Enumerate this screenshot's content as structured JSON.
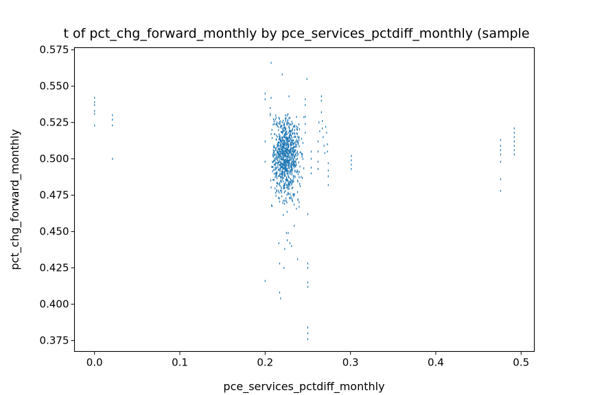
{
  "chart_data": {
    "type": "scatter",
    "title": "t of pct_chg_forward_monthly by pce_services_pctdiff_monthly (sample",
    "xlabel": "pce_services_pctdiff_monthly",
    "ylabel": "pct_chg_forward_monthly",
    "xlim": [
      -0.0235,
      0.5155
    ],
    "ylim": [
      0.3675,
      0.5765
    ],
    "xticks": [
      "0.0",
      "0.1",
      "0.2",
      "0.3",
      "0.4",
      "0.5"
    ],
    "yticks": [
      "0.375",
      "0.400",
      "0.425",
      "0.450",
      "0.475",
      "0.500",
      "0.525",
      "0.550",
      "0.575"
    ],
    "grid": false,
    "marker_color": "#1f77b4",
    "points": [
      [
        0.0,
        0.542
      ],
      [
        0.0,
        0.539
      ],
      [
        0.0,
        0.537
      ],
      [
        0.0,
        0.533
      ],
      [
        0.0,
        0.531
      ],
      [
        0.0,
        0.523
      ],
      [
        0.021,
        0.53
      ],
      [
        0.021,
        0.527
      ],
      [
        0.021,
        0.523
      ],
      [
        0.021,
        0.5
      ],
      [
        0.2,
        0.545
      ],
      [
        0.2,
        0.541
      ],
      [
        0.2,
        0.512
      ],
      [
        0.2,
        0.498
      ],
      [
        0.2,
        0.416
      ],
      [
        0.206,
        0.535
      ],
      [
        0.206,
        0.531
      ],
      [
        0.207,
        0.566
      ],
      [
        0.207,
        0.542
      ],
      [
        0.208,
        0.52
      ],
      [
        0.216,
        0.442
      ],
      [
        0.217,
        0.428
      ],
      [
        0.217,
        0.408
      ],
      [
        0.218,
        0.404
      ],
      [
        0.22,
        0.558
      ],
      [
        0.222,
        0.425
      ],
      [
        0.223,
        0.438
      ],
      [
        0.225,
        0.449
      ],
      [
        0.226,
        0.444
      ],
      [
        0.227,
        0.449
      ],
      [
        0.228,
        0.543
      ],
      [
        0.229,
        0.442
      ],
      [
        0.231,
        0.44
      ],
      [
        0.234,
        0.454
      ],
      [
        0.238,
        0.431
      ],
      [
        0.247,
        0.541
      ],
      [
        0.247,
        0.537
      ],
      [
        0.247,
        0.529
      ],
      [
        0.247,
        0.524
      ],
      [
        0.247,
        0.518
      ],
      [
        0.249,
        0.555
      ],
      [
        0.25,
        0.462
      ],
      [
        0.25,
        0.428
      ],
      [
        0.25,
        0.425
      ],
      [
        0.25,
        0.415
      ],
      [
        0.25,
        0.412
      ],
      [
        0.25,
        0.384
      ],
      [
        0.25,
        0.38
      ],
      [
        0.25,
        0.376
      ],
      [
        0.254,
        0.505
      ],
      [
        0.254,
        0.5
      ],
      [
        0.254,
        0.494
      ],
      [
        0.254,
        0.49
      ],
      [
        0.262,
        0.512
      ],
      [
        0.262,
        0.505
      ],
      [
        0.262,
        0.498
      ],
      [
        0.262,
        0.493
      ],
      [
        0.263,
        0.525
      ],
      [
        0.264,
        0.519
      ],
      [
        0.266,
        0.543
      ],
      [
        0.266,
        0.54
      ],
      [
        0.266,
        0.532
      ],
      [
        0.267,
        0.526
      ],
      [
        0.267,
        0.521
      ],
      [
        0.268,
        0.515
      ],
      [
        0.269,
        0.509
      ],
      [
        0.27,
        0.504
      ],
      [
        0.271,
        0.522
      ],
      [
        0.272,
        0.518
      ],
      [
        0.273,
        0.51
      ],
      [
        0.273,
        0.505
      ],
      [
        0.274,
        0.497
      ],
      [
        0.274,
        0.492
      ],
      [
        0.274,
        0.488
      ],
      [
        0.274,
        0.482
      ],
      [
        0.301,
        0.502
      ],
      [
        0.301,
        0.499
      ],
      [
        0.301,
        0.496
      ],
      [
        0.301,
        0.493
      ],
      [
        0.476,
        0.513
      ],
      [
        0.476,
        0.509
      ],
      [
        0.476,
        0.506
      ],
      [
        0.476,
        0.503
      ],
      [
        0.476,
        0.498
      ],
      [
        0.476,
        0.486
      ],
      [
        0.476,
        0.478
      ],
      [
        0.492,
        0.521
      ],
      [
        0.492,
        0.518
      ],
      [
        0.492,
        0.515
      ],
      [
        0.492,
        0.512
      ],
      [
        0.492,
        0.509
      ],
      [
        0.492,
        0.506
      ],
      [
        0.492,
        0.503
      ]
    ],
    "dense_cluster": {
      "count": 850,
      "x_center": 0.224,
      "x_spread": 0.0085,
      "y_center": 0.501,
      "y_spread": 0.014,
      "x_range": [
        0.206,
        0.247
      ],
      "y_range": [
        0.459,
        0.532
      ]
    }
  }
}
